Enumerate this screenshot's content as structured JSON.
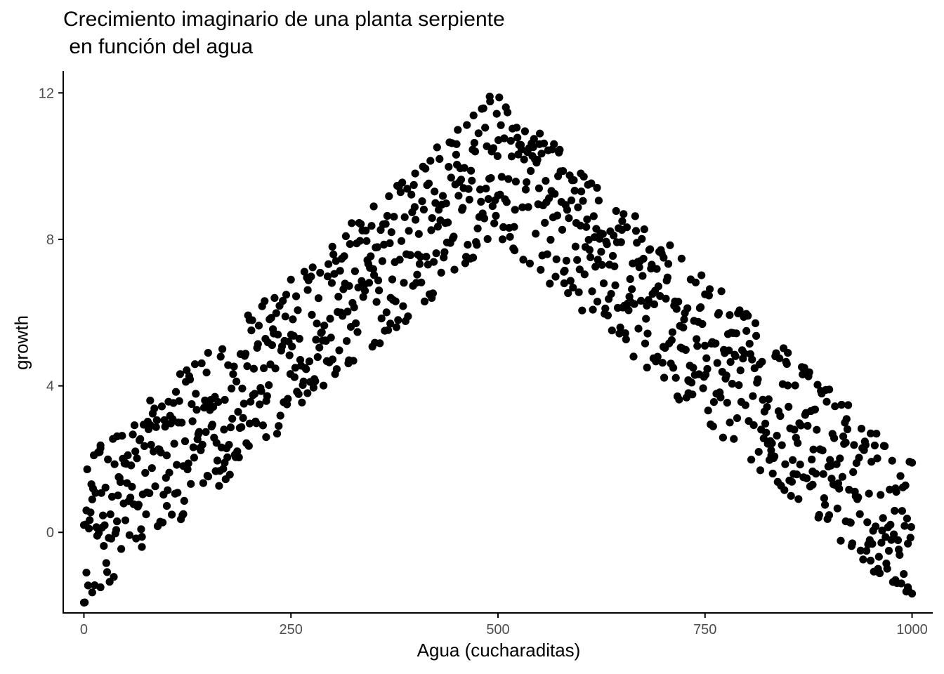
{
  "chart_data": {
    "type": "scatter",
    "title_lines": [
      "Crecimiento imaginario de una planta serpiente",
      " en función del agua"
    ],
    "xlabel": "Agua (cucharaditas)",
    "ylabel": "growth",
    "xlim": [
      -25,
      1025
    ],
    "ylim": [
      -2.2,
      12.6
    ],
    "xticks": [
      0,
      250,
      500,
      750,
      1000
    ],
    "yticks": [
      0,
      4,
      8,
      12
    ],
    "grid": false,
    "point_color": "#000000",
    "axis_color": "#000000",
    "tick_label_color": "#4d4d4d",
    "n_points": 1000,
    "model": "growth ≈ 0.02·x for x ≤ 500 and 0.02·(1000−x) for x > 500, with noise of roughly ±2",
    "sample_points": [
      [
        0,
        0.2
      ],
      [
        3,
        -1.1
      ],
      [
        10,
        0.9
      ],
      [
        20,
        -1.5
      ],
      [
        20,
        2.3
      ],
      [
        40,
        0.3
      ],
      [
        50,
        1.9
      ],
      [
        70,
        -0.4
      ],
      [
        80,
        3.6
      ],
      [
        100,
        2.1
      ],
      [
        120,
        0.5
      ],
      [
        150,
        4.9
      ],
      [
        170,
        1.9
      ],
      [
        200,
        5.8
      ],
      [
        220,
        2.6
      ],
      [
        250,
        6.9
      ],
      [
        270,
        3.8
      ],
      [
        300,
        7.8
      ],
      [
        320,
        4.7
      ],
      [
        350,
        8.9
      ],
      [
        370,
        5.7
      ],
      [
        400,
        9.8
      ],
      [
        420,
        6.4
      ],
      [
        450,
        10.6
      ],
      [
        470,
        7.5
      ],
      [
        490,
        11.9
      ],
      [
        500,
        9.2
      ],
      [
        520,
        7.7
      ],
      [
        550,
        10.6
      ],
      [
        580,
        6.8
      ],
      [
        600,
        9.8
      ],
      [
        620,
        6.3
      ],
      [
        650,
        8.5
      ],
      [
        680,
        4.5
      ],
      [
        700,
        7.5
      ],
      [
        730,
        3.8
      ],
      [
        750,
        6.5
      ],
      [
        780,
        3.0
      ],
      [
        800,
        5.5
      ],
      [
        830,
        2.1
      ],
      [
        850,
        4.9
      ],
      [
        880,
        1.3
      ],
      [
        900,
        3.9
      ],
      [
        920,
        0.3
      ],
      [
        950,
        2.7
      ],
      [
        960,
        -1.1
      ],
      [
        980,
        1.2
      ],
      [
        995,
        -1.5
      ],
      [
        1000,
        1.9
      ]
    ]
  }
}
